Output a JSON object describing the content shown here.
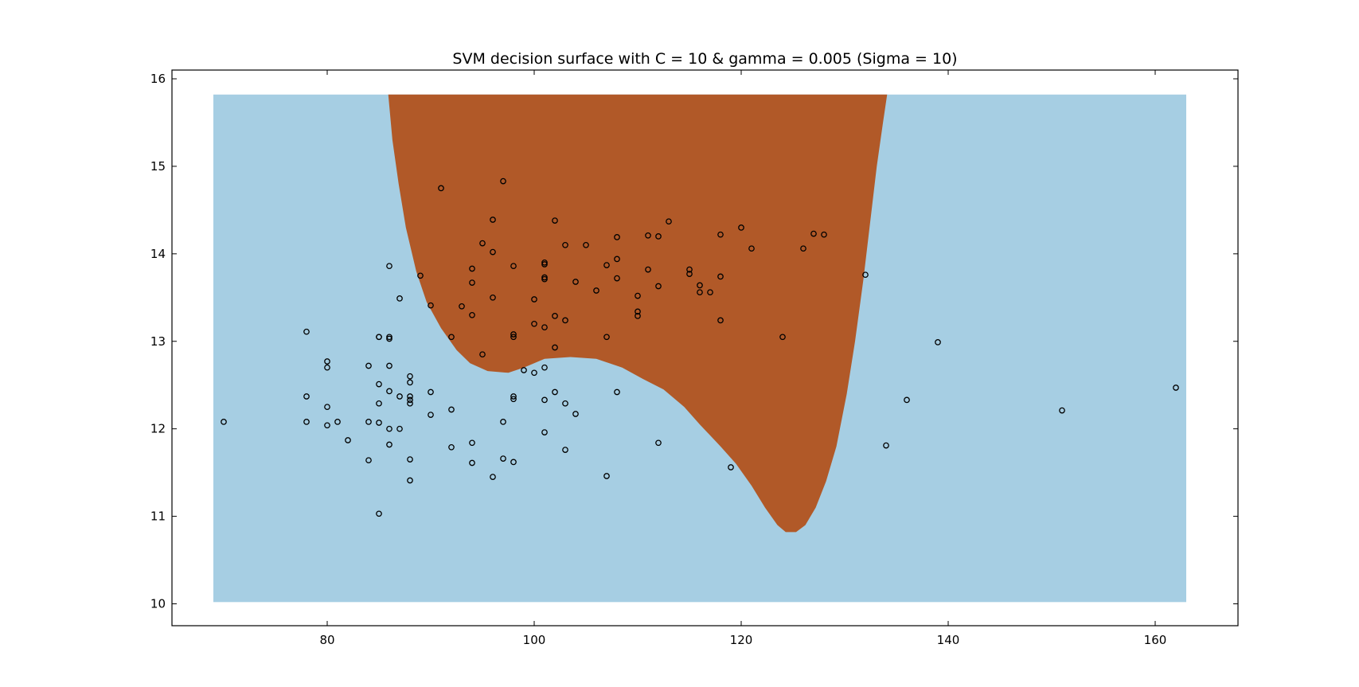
{
  "chart_data": {
    "type": "scatter",
    "title": "SVM decision surface with C = 10 & gamma = 0.005 (Sigma = 10)",
    "xlabel": "",
    "ylabel": "",
    "xlim": [
      65,
      168
    ],
    "ylim": [
      9.75,
      16.1
    ],
    "xticks": [
      80,
      100,
      120,
      140,
      160
    ],
    "yticks": [
      10,
      11,
      12,
      13,
      14,
      15,
      16
    ],
    "grid": false,
    "colors": {
      "negative_region": "#a6cee3",
      "positive_region": "#b15928",
      "marker_edge": "#000000",
      "axes": "#000000"
    },
    "decision_surface": {
      "x_range": [
        69,
        163
      ],
      "y_range": [
        10.02,
        15.82
      ],
      "inside_class_boundary": [
        [
          85.9,
          15.82
        ],
        [
          86.3,
          15.3
        ],
        [
          86.9,
          14.8
        ],
        [
          87.6,
          14.3
        ],
        [
          88.6,
          13.8
        ],
        [
          89.6,
          13.45
        ],
        [
          91.0,
          13.15
        ],
        [
          92.5,
          12.9
        ],
        [
          93.8,
          12.75
        ],
        [
          95.5,
          12.66
        ],
        [
          97.5,
          12.64
        ],
        [
          99.0,
          12.7
        ],
        [
          101.0,
          12.8
        ],
        [
          103.5,
          12.82
        ],
        [
          106.0,
          12.8
        ],
        [
          108.5,
          12.7
        ],
        [
          110.5,
          12.57
        ],
        [
          112.5,
          12.45
        ],
        [
          114.5,
          12.25
        ],
        [
          116.0,
          12.05
        ],
        [
          118.0,
          11.8
        ],
        [
          119.5,
          11.6
        ],
        [
          121.0,
          11.35
        ],
        [
          122.3,
          11.1
        ],
        [
          123.5,
          10.9
        ],
        [
          124.3,
          10.82
        ],
        [
          125.3,
          10.82
        ],
        [
          126.2,
          10.9
        ],
        [
          127.2,
          11.1
        ],
        [
          128.2,
          11.4
        ],
        [
          129.2,
          11.8
        ],
        [
          130.2,
          12.4
        ],
        [
          131.0,
          13.0
        ],
        [
          131.8,
          13.7
        ],
        [
          132.5,
          14.4
        ],
        [
          133.1,
          15.0
        ],
        [
          133.7,
          15.5
        ],
        [
          134.1,
          15.82
        ]
      ]
    },
    "points": {
      "x": [
        70,
        78,
        78,
        78,
        80,
        80,
        80,
        80,
        81,
        82,
        84,
        84,
        84,
        85,
        85,
        85,
        85,
        85,
        85,
        86,
        86,
        86,
        86,
        86,
        86,
        86,
        87,
        87,
        87,
        88,
        88,
        88,
        88,
        88,
        88,
        88,
        89,
        90,
        90,
        90,
        91,
        92,
        92,
        92,
        93,
        94,
        94,
        94,
        94,
        94,
        95,
        95,
        96,
        96,
        96,
        96,
        97,
        97,
        97,
        98,
        98,
        98,
        98,
        98,
        98,
        99,
        100,
        100,
        100,
        101,
        101,
        101,
        101,
        101,
        101,
        101,
        101,
        102,
        102,
        102,
        102,
        103,
        103,
        103,
        103,
        104,
        104,
        105,
        106,
        107,
        107,
        107,
        108,
        108,
        108,
        108,
        110,
        110,
        110,
        111,
        111,
        112,
        112,
        112,
        113,
        115,
        115,
        116,
        116,
        117,
        118,
        118,
        118,
        119,
        120,
        121,
        124,
        126,
        127,
        128,
        132,
        134,
        136,
        139,
        151,
        162
      ],
      "y": [
        12.08,
        13.11,
        12.37,
        12.08,
        12.77,
        12.7,
        12.25,
        12.04,
        12.08,
        11.87,
        12.72,
        12.08,
        11.64,
        13.05,
        12.51,
        12.29,
        12.07,
        11.03,
        13.05,
        13.86,
        13.05,
        13.03,
        12.72,
        12.43,
        12.0,
        11.82,
        13.49,
        12.37,
        12.0,
        12.6,
        12.53,
        12.37,
        12.33,
        12.29,
        11.65,
        11.41,
        13.75,
        13.41,
        12.42,
        12.16,
        14.75,
        13.05,
        12.22,
        11.79,
        13.4,
        13.83,
        13.67,
        13.3,
        11.84,
        11.61,
        14.12,
        12.85,
        14.39,
        14.02,
        13.5,
        11.45,
        14.83,
        12.08,
        11.66,
        13.86,
        13.08,
        13.05,
        12.37,
        12.34,
        11.62,
        12.67,
        13.48,
        13.2,
        12.64,
        13.9,
        13.88,
        13.73,
        13.71,
        13.16,
        12.7,
        12.33,
        11.96,
        14.38,
        13.29,
        12.93,
        12.42,
        14.1,
        13.24,
        12.29,
        11.76,
        13.68,
        12.17,
        14.1,
        13.58,
        13.87,
        13.05,
        11.46,
        14.19,
        13.94,
        13.72,
        12.42,
        13.52,
        13.34,
        13.29,
        14.21,
        13.82,
        14.2,
        13.63,
        11.84,
        14.37,
        13.82,
        13.77,
        13.64,
        13.56,
        13.56,
        14.22,
        13.74,
        13.24,
        11.56,
        14.3,
        14.06,
        13.05,
        14.06,
        14.23,
        14.22,
        13.76,
        11.81,
        12.33,
        12.99,
        12.21,
        12.47
      ]
    }
  }
}
